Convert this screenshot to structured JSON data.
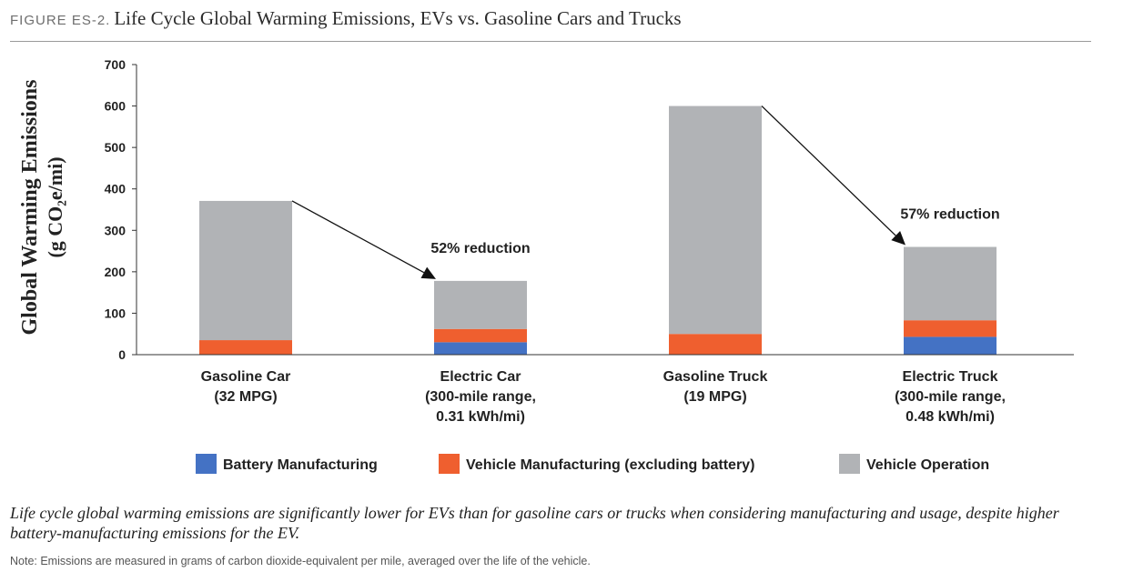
{
  "figure": {
    "label": "FIGURE ES-2.",
    "title": "Life Cycle Global Warming Emissions, EVs vs. Gasoline Cars and Trucks"
  },
  "chart_data": {
    "type": "bar",
    "stacked": true,
    "ylabel": "Global Warming Emissions",
    "ylabel_unit": "(g CO₂e/mi)",
    "ylim": [
      0,
      700
    ],
    "yticks": [
      0,
      100,
      200,
      300,
      400,
      500,
      600,
      700
    ],
    "grid": false,
    "legend_position": "bottom",
    "categories": [
      [
        "Gasoline Car",
        "(32 MPG)"
      ],
      [
        "Electric Car",
        "(300-mile range,",
        "0.31 kWh/mi)"
      ],
      [
        "Gasoline Truck",
        "(19 MPG)"
      ],
      [
        "Electric Truck",
        "(300-mile range,",
        "0.48 kWh/mi)"
      ]
    ],
    "series": [
      {
        "name": "Battery Manufacturing",
        "color": "#4472c4",
        "values": [
          0,
          30,
          0,
          43
        ]
      },
      {
        "name": "Vehicle Manufacturing (excluding battery)",
        "color": "#ef5f2f",
        "values": [
          35,
          32,
          50,
          40
        ]
      },
      {
        "name": "Vehicle Operation",
        "color": "#b1b3b6",
        "values": [
          336,
          116,
          550,
          177
        ]
      }
    ],
    "annotations": [
      {
        "text": "52% reduction",
        "from_category": 0,
        "to_category": 1
      },
      {
        "text": "57% reduction",
        "from_category": 2,
        "to_category": 3
      }
    ]
  },
  "caption": "Life cycle global warming emissions are significantly lower for EVs than for gasoline cars or trucks when considering manufacturing and usage, despite higher battery-manufacturing emissions for the EV.",
  "note": "Note: Emissions are measured in grams of carbon dioxide-equivalent per mile, averaged over the life of the vehicle."
}
